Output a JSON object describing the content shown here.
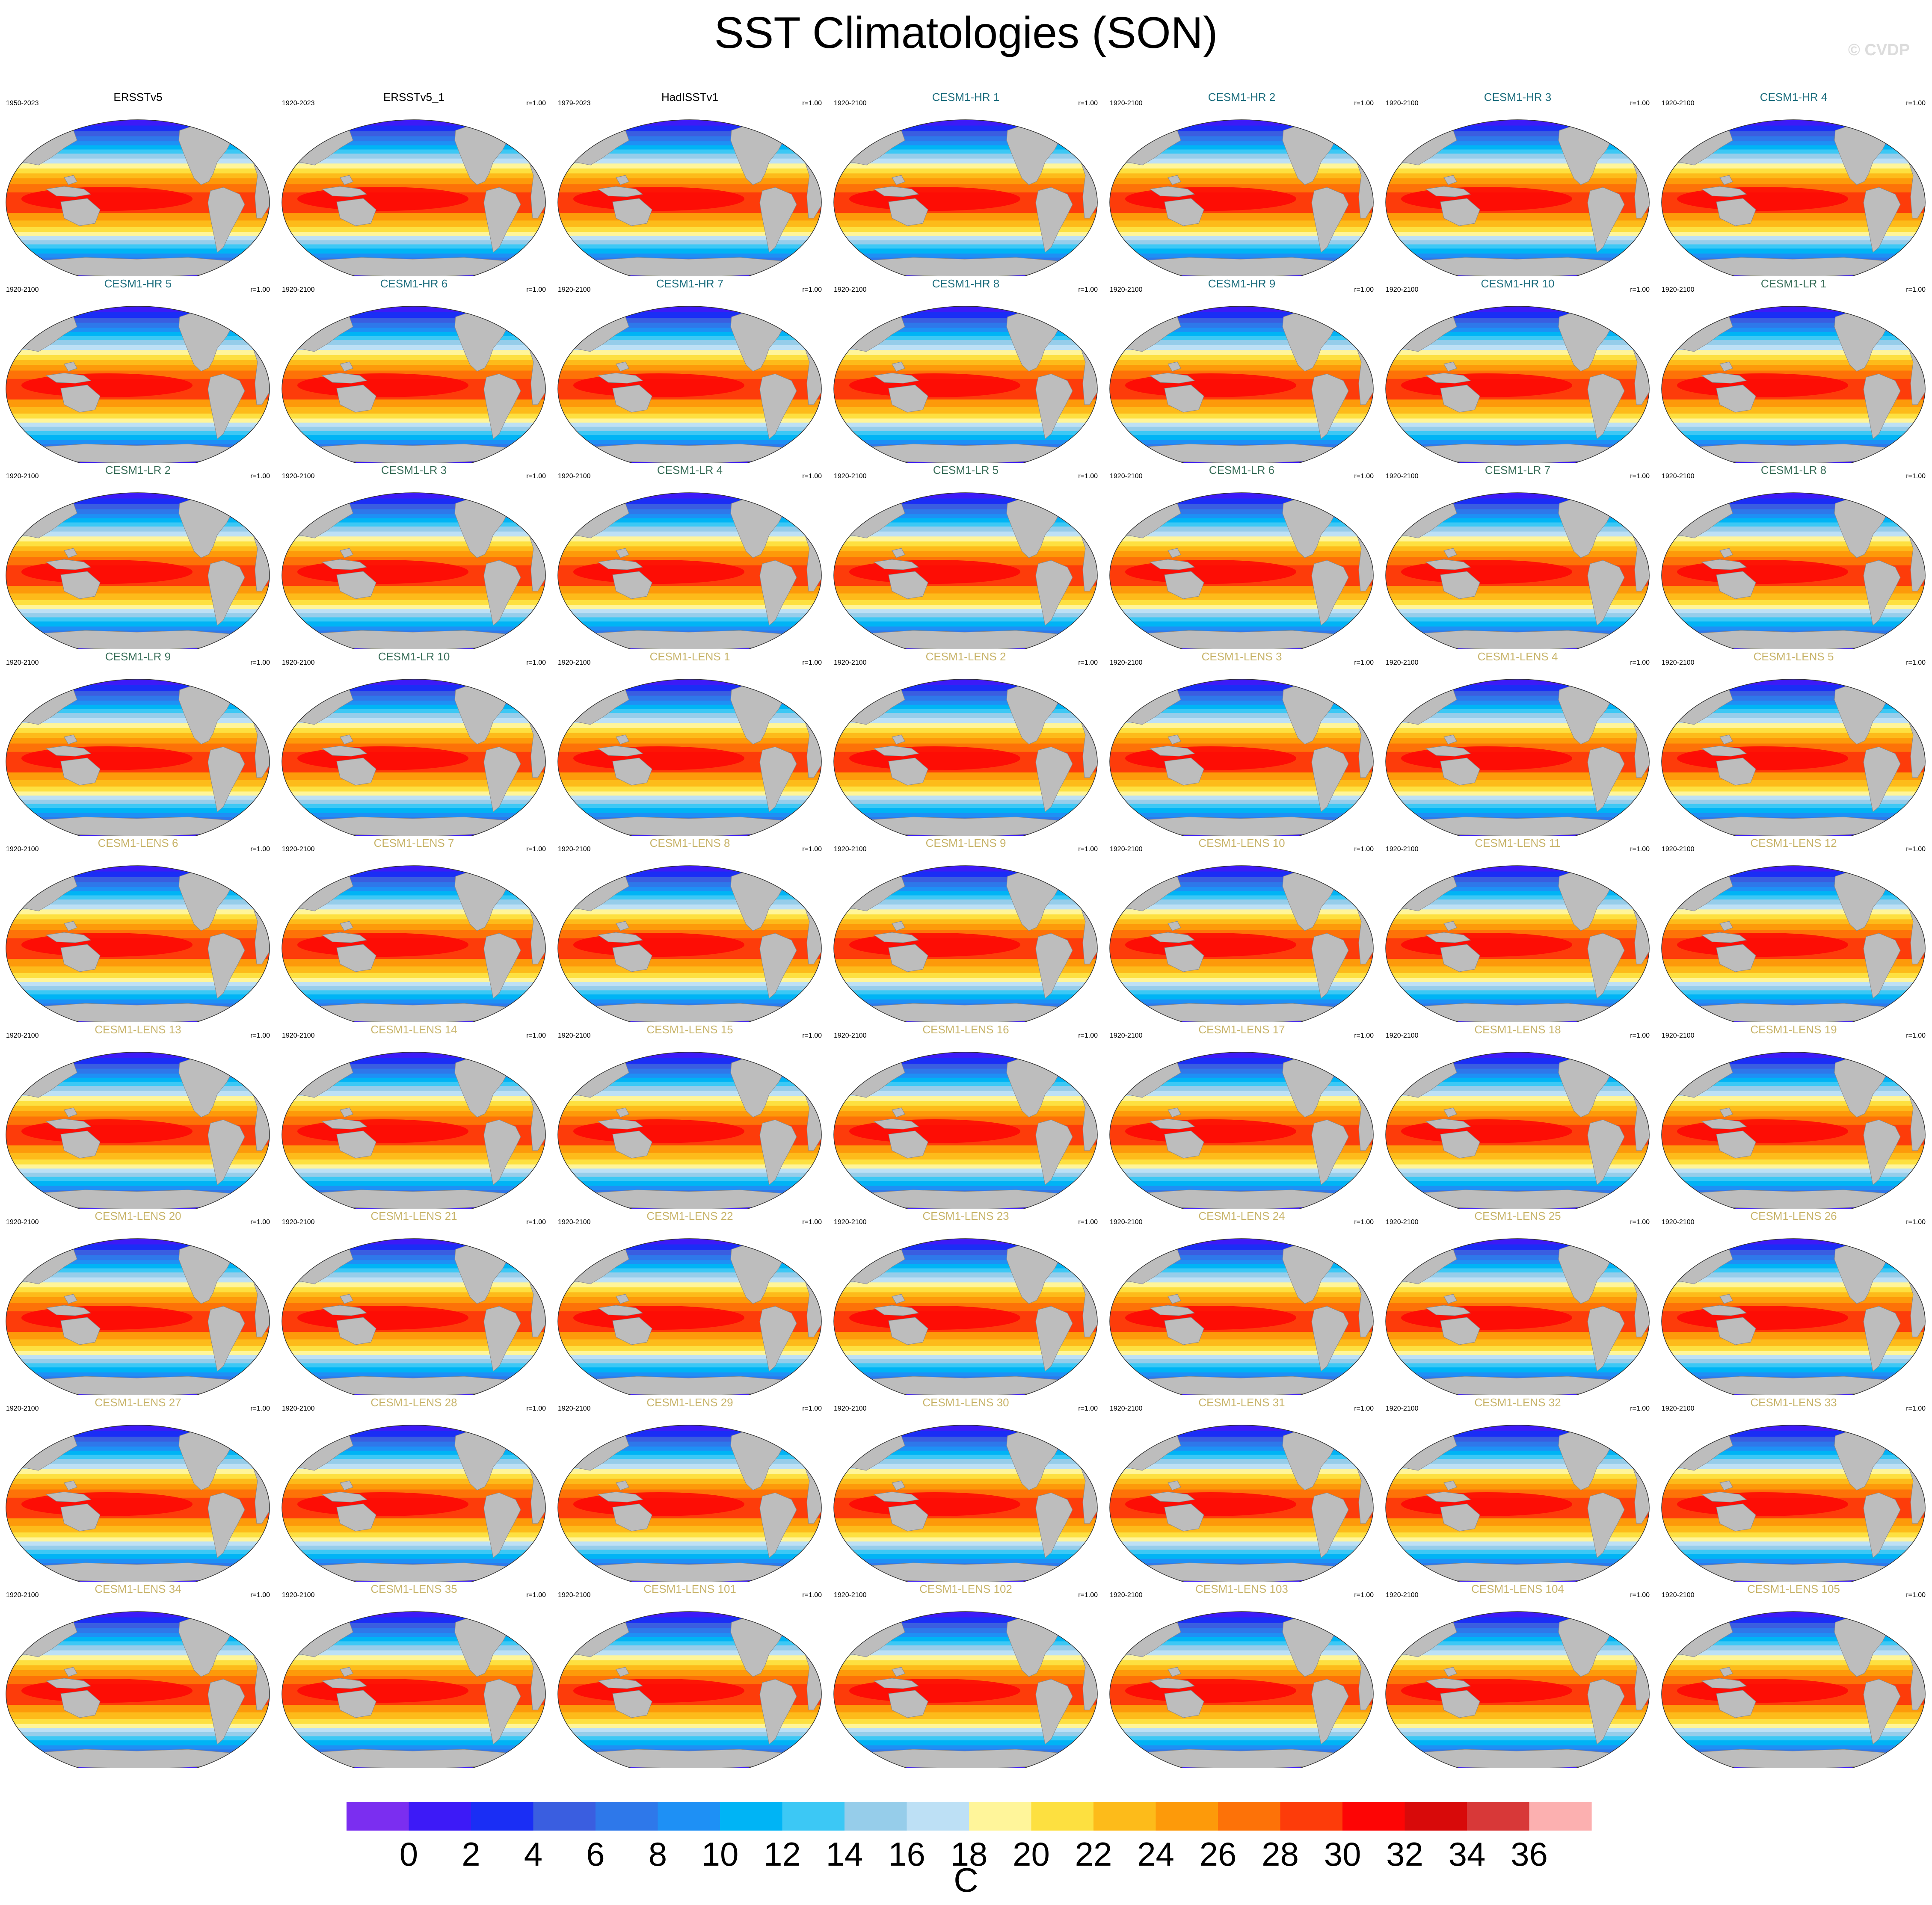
{
  "header": {
    "title": "SST Climatologies (SON)",
    "watermark": "© CVDP"
  },
  "colors": {
    "land": "#bdbdbd",
    "obs_title": "#000000",
    "hr_title": "#1f6f7f",
    "lr_title": "#3a6f5a",
    "lens_title": "#c8b46a"
  },
  "chart_data": {
    "type": "heatmap",
    "title": "SST Climatologies (SON)",
    "colorbar": {
      "levels": [
        0,
        2,
        4,
        6,
        8,
        10,
        12,
        14,
        16,
        18,
        20,
        22,
        24,
        26,
        28,
        30,
        32,
        34,
        36
      ],
      "colors": [
        "#7b2ef0",
        "#3d1af7",
        "#1a2ef5",
        "#3a5ee0",
        "#2e78ea",
        "#1e90f5",
        "#00b4f5",
        "#3cc8f5",
        "#96cdea",
        "#bde0f5",
        "#fff59a",
        "#fde040",
        "#fdbb1a",
        "#fd9a0a",
        "#fd7208",
        "#fd3c0a",
        "#fd0505",
        "#d80a0a",
        "#d83838",
        "#fcb0b0"
      ],
      "unit": "C"
    },
    "panels": [
      {
        "title": "ERSSTv5",
        "years": "1950-2023",
        "r": "",
        "group": "obs"
      },
      {
        "title": "ERSSTv5_1",
        "years": "1920-2023",
        "r": "r=1.00",
        "group": "obs"
      },
      {
        "title": "HadISSTv1",
        "years": "1979-2023",
        "r": "r=1.00",
        "group": "obs"
      },
      {
        "title": "CESM1-HR 1",
        "years": "1920-2100",
        "r": "r=1.00",
        "group": "hr"
      },
      {
        "title": "CESM1-HR 2",
        "years": "1920-2100",
        "r": "r=1.00",
        "group": "hr"
      },
      {
        "title": "CESM1-HR 3",
        "years": "1920-2100",
        "r": "r=1.00",
        "group": "hr"
      },
      {
        "title": "CESM1-HR 4",
        "years": "1920-2100",
        "r": "r=1.00",
        "group": "hr"
      },
      {
        "title": "CESM1-HR 5",
        "years": "1920-2100",
        "r": "r=1.00",
        "group": "hr"
      },
      {
        "title": "CESM1-HR 6",
        "years": "1920-2100",
        "r": "r=1.00",
        "group": "hr"
      },
      {
        "title": "CESM1-HR 7",
        "years": "1920-2100",
        "r": "r=1.00",
        "group": "hr"
      },
      {
        "title": "CESM1-HR 8",
        "years": "1920-2100",
        "r": "r=1.00",
        "group": "hr"
      },
      {
        "title": "CESM1-HR 9",
        "years": "1920-2100",
        "r": "r=1.00",
        "group": "hr"
      },
      {
        "title": "CESM1-HR 10",
        "years": "1920-2100",
        "r": "r=1.00",
        "group": "hr"
      },
      {
        "title": "CESM1-LR 1",
        "years": "1920-2100",
        "r": "r=1.00",
        "group": "lr"
      },
      {
        "title": "CESM1-LR 2",
        "years": "1920-2100",
        "r": "r=1.00",
        "group": "lr"
      },
      {
        "title": "CESM1-LR 3",
        "years": "1920-2100",
        "r": "r=1.00",
        "group": "lr"
      },
      {
        "title": "CESM1-LR 4",
        "years": "1920-2100",
        "r": "r=1.00",
        "group": "lr"
      },
      {
        "title": "CESM1-LR 5",
        "years": "1920-2100",
        "r": "r=1.00",
        "group": "lr"
      },
      {
        "title": "CESM1-LR 6",
        "years": "1920-2100",
        "r": "r=1.00",
        "group": "lr"
      },
      {
        "title": "CESM1-LR 7",
        "years": "1920-2100",
        "r": "r=1.00",
        "group": "lr"
      },
      {
        "title": "CESM1-LR 8",
        "years": "1920-2100",
        "r": "r=1.00",
        "group": "lr"
      },
      {
        "title": "CESM1-LR 9",
        "years": "1920-2100",
        "r": "r=1.00",
        "group": "lr"
      },
      {
        "title": "CESM1-LR 10",
        "years": "1920-2100",
        "r": "r=1.00",
        "group": "lr"
      },
      {
        "title": "CESM1-LENS 1",
        "years": "1920-2100",
        "r": "r=1.00",
        "group": "lens"
      },
      {
        "title": "CESM1-LENS 2",
        "years": "1920-2100",
        "r": "r=1.00",
        "group": "lens"
      },
      {
        "title": "CESM1-LENS 3",
        "years": "1920-2100",
        "r": "r=1.00",
        "group": "lens"
      },
      {
        "title": "CESM1-LENS 4",
        "years": "1920-2100",
        "r": "r=1.00",
        "group": "lens"
      },
      {
        "title": "CESM1-LENS 5",
        "years": "1920-2100",
        "r": "r=1.00",
        "group": "lens"
      },
      {
        "title": "CESM1-LENS 6",
        "years": "1920-2100",
        "r": "r=1.00",
        "group": "lens"
      },
      {
        "title": "CESM1-LENS 7",
        "years": "1920-2100",
        "r": "r=1.00",
        "group": "lens"
      },
      {
        "title": "CESM1-LENS 8",
        "years": "1920-2100",
        "r": "r=1.00",
        "group": "lens"
      },
      {
        "title": "CESM1-LENS 9",
        "years": "1920-2100",
        "r": "r=1.00",
        "group": "lens"
      },
      {
        "title": "CESM1-LENS 10",
        "years": "1920-2100",
        "r": "r=1.00",
        "group": "lens"
      },
      {
        "title": "CESM1-LENS 11",
        "years": "1920-2100",
        "r": "r=1.00",
        "group": "lens"
      },
      {
        "title": "CESM1-LENS 12",
        "years": "1920-2100",
        "r": "r=1.00",
        "group": "lens"
      },
      {
        "title": "CESM1-LENS 13",
        "years": "1920-2100",
        "r": "r=1.00",
        "group": "lens"
      },
      {
        "title": "CESM1-LENS 14",
        "years": "1920-2100",
        "r": "r=1.00",
        "group": "lens"
      },
      {
        "title": "CESM1-LENS 15",
        "years": "1920-2100",
        "r": "r=1.00",
        "group": "lens"
      },
      {
        "title": "CESM1-LENS 16",
        "years": "1920-2100",
        "r": "r=1.00",
        "group": "lens"
      },
      {
        "title": "CESM1-LENS 17",
        "years": "1920-2100",
        "r": "r=1.00",
        "group": "lens"
      },
      {
        "title": "CESM1-LENS 18",
        "years": "1920-2100",
        "r": "r=1.00",
        "group": "lens"
      },
      {
        "title": "CESM1-LENS 19",
        "years": "1920-2100",
        "r": "r=1.00",
        "group": "lens"
      },
      {
        "title": "CESM1-LENS 20",
        "years": "1920-2100",
        "r": "r=1.00",
        "group": "lens"
      },
      {
        "title": "CESM1-LENS 21",
        "years": "1920-2100",
        "r": "r=1.00",
        "group": "lens"
      },
      {
        "title": "CESM1-LENS 22",
        "years": "1920-2100",
        "r": "r=1.00",
        "group": "lens"
      },
      {
        "title": "CESM1-LENS 23",
        "years": "1920-2100",
        "r": "r=1.00",
        "group": "lens"
      },
      {
        "title": "CESM1-LENS 24",
        "years": "1920-2100",
        "r": "r=1.00",
        "group": "lens"
      },
      {
        "title": "CESM1-LENS 25",
        "years": "1920-2100",
        "r": "r=1.00",
        "group": "lens"
      },
      {
        "title": "CESM1-LENS 26",
        "years": "1920-2100",
        "r": "r=1.00",
        "group": "lens"
      },
      {
        "title": "CESM1-LENS 27",
        "years": "1920-2100",
        "r": "r=1.00",
        "group": "lens"
      },
      {
        "title": "CESM1-LENS 28",
        "years": "1920-2100",
        "r": "r=1.00",
        "group": "lens"
      },
      {
        "title": "CESM1-LENS 29",
        "years": "1920-2100",
        "r": "r=1.00",
        "group": "lens"
      },
      {
        "title": "CESM1-LENS 30",
        "years": "1920-2100",
        "r": "r=1.00",
        "group": "lens"
      },
      {
        "title": "CESM1-LENS 31",
        "years": "1920-2100",
        "r": "r=1.00",
        "group": "lens"
      },
      {
        "title": "CESM1-LENS 32",
        "years": "1920-2100",
        "r": "r=1.00",
        "group": "lens"
      },
      {
        "title": "CESM1-LENS 33",
        "years": "1920-2100",
        "r": "r=1.00",
        "group": "lens"
      },
      {
        "title": "CESM1-LENS 34",
        "years": "1920-2100",
        "r": "r=1.00",
        "group": "lens"
      },
      {
        "title": "CESM1-LENS 35",
        "years": "1920-2100",
        "r": "r=1.00",
        "group": "lens"
      },
      {
        "title": "CESM1-LENS 101",
        "years": "1920-2100",
        "r": "r=1.00",
        "group": "lens"
      },
      {
        "title": "CESM1-LENS 102",
        "years": "1920-2100",
        "r": "r=1.00",
        "group": "lens"
      },
      {
        "title": "CESM1-LENS 103",
        "years": "1920-2100",
        "r": "r=1.00",
        "group": "lens"
      },
      {
        "title": "CESM1-LENS 104",
        "years": "1920-2100",
        "r": "r=1.00",
        "group": "lens"
      },
      {
        "title": "CESM1-LENS 105",
        "years": "1920-2100",
        "r": "r=1.00",
        "group": "lens"
      }
    ]
  }
}
